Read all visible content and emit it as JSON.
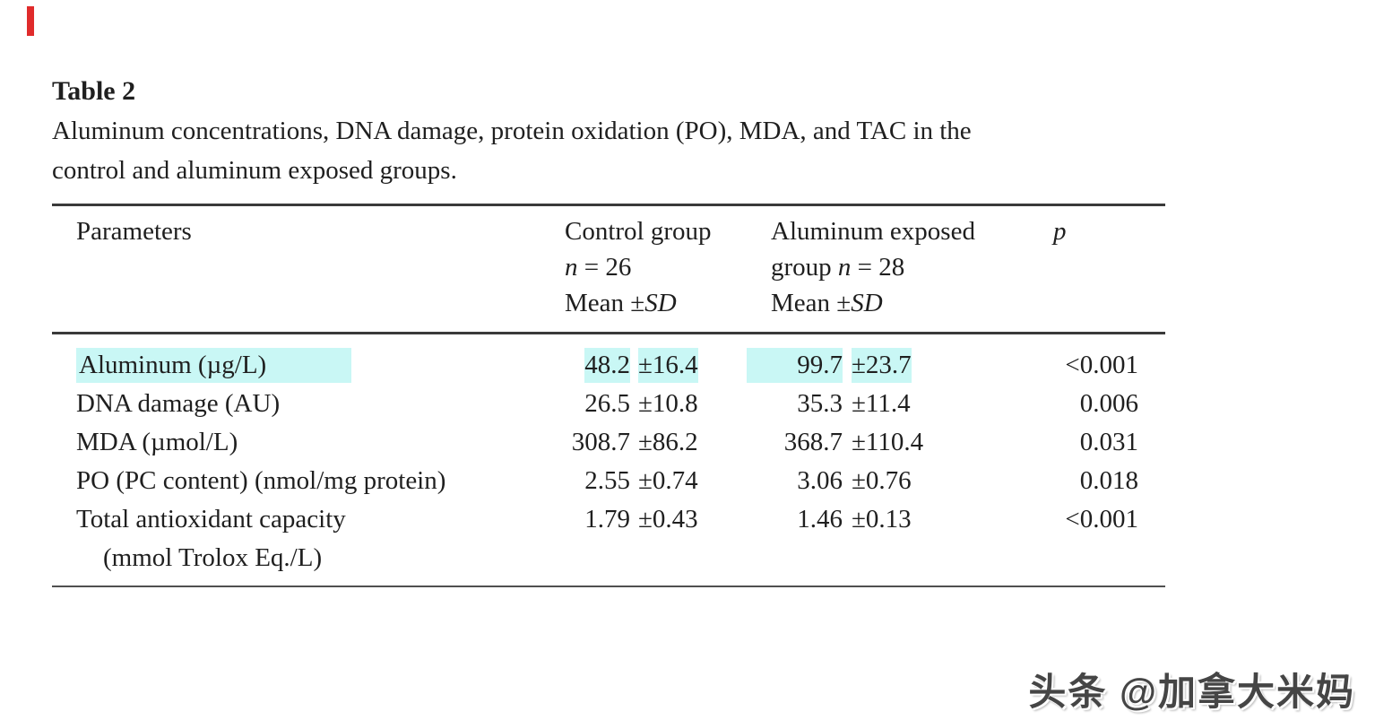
{
  "page": {
    "background": "#ffffff",
    "red_marker_color": "#e02b2b",
    "text_color": "#1f1f1f",
    "rule_color": "#3a3a3a"
  },
  "title": "Table 2",
  "caption_line1": "Aluminum concentrations, DNA damage, protein oxidation (PO), MDA, and TAC in the",
  "caption_line2": "control and aluminum exposed groups.",
  "table": {
    "highlight_color": "#c9f7f5",
    "header": {
      "parameters": "Parameters",
      "control": {
        "line1": "Control group",
        "n": "n",
        "n_rest": " = 26",
        "mean": "Mean ±",
        "sd": "SD"
      },
      "exposed": {
        "line1": "Aluminum exposed",
        "line2_prefix": "group ",
        "n": "n",
        "n_rest": " = 28",
        "mean": "Mean ±",
        "sd": "SD"
      },
      "p": "p"
    },
    "rows": [
      {
        "label": "Aluminum (µg/L)",
        "label2": "",
        "control_mean": "48.2",
        "control_sd": "±16.4",
        "exposed_mean": "99.7",
        "exposed_sd": "±23.7",
        "p": "<0.001",
        "highlighted": true
      },
      {
        "label": "DNA damage (AU)",
        "label2": "",
        "control_mean": "26.5",
        "control_sd": "±10.8",
        "exposed_mean": "35.3",
        "exposed_sd": "±11.4",
        "p": "0.006",
        "highlighted": false
      },
      {
        "label": "MDA (µmol/L)",
        "label2": "",
        "control_mean": "308.7",
        "control_sd": "±86.2",
        "exposed_mean": "368.7",
        "exposed_sd": "±110.4",
        "p": "0.031",
        "highlighted": false
      },
      {
        "label": "PO (PC content) (nmol/mg protein)",
        "label2": "",
        "control_mean": "2.55",
        "control_sd": "±0.74",
        "exposed_mean": "3.06",
        "exposed_sd": "±0.76",
        "p": "0.018",
        "highlighted": false
      },
      {
        "label": "Total antioxidant capacity",
        "label2": "(mmol Trolox Eq./L)",
        "control_mean": "1.79",
        "control_sd": "±0.43",
        "exposed_mean": "1.46",
        "exposed_sd": "±0.13",
        "p": "<0.001",
        "highlighted": false
      }
    ]
  },
  "watermark": {
    "text": "头条 @加拿大米妈"
  },
  "chart_data": {
    "type": "table",
    "title": "Table 2. Aluminum concentrations, DNA damage, protein oxidation (PO), MDA, and TAC in the control and aluminum exposed groups.",
    "columns": [
      "Parameters",
      "Control group n = 26 Mean ±SD",
      "Aluminum exposed group n = 28 Mean ±SD",
      "p"
    ],
    "rows": [
      [
        "Aluminum (µg/L)",
        "48.2 ±16.4",
        "99.7 ±23.7",
        "<0.001"
      ],
      [
        "DNA damage (AU)",
        "26.5 ±10.8",
        "35.3 ±11.4",
        "0.006"
      ],
      [
        "MDA (µmol/L)",
        "308.7 ±86.2",
        "368.7 ±110.4",
        "0.031"
      ],
      [
        "PO (PC content) (nmol/mg protein)",
        "2.55 ±0.74",
        "3.06 ±0.76",
        "0.018"
      ],
      [
        "Total antioxidant capacity (mmol Trolox Eq./L)",
        "1.79 ±0.43",
        "1.46 ±0.13",
        "<0.001"
      ]
    ]
  }
}
